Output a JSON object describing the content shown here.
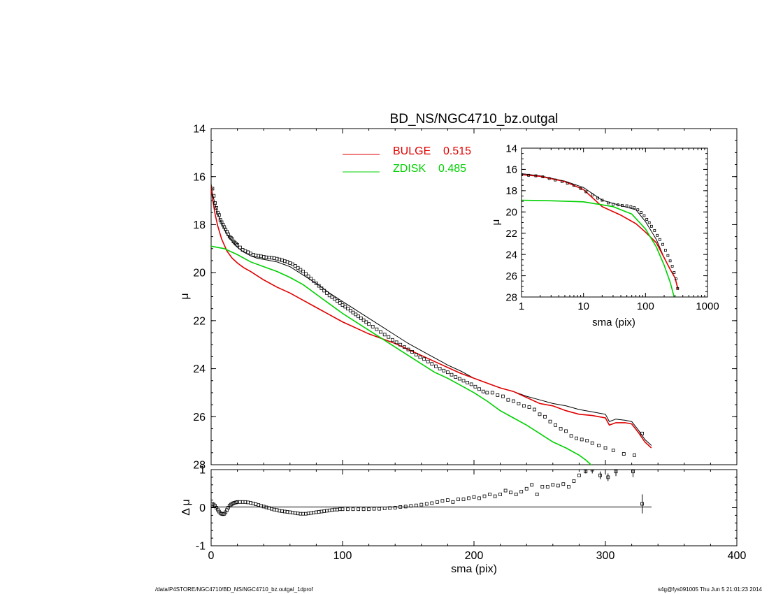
{
  "footer": {
    "left": "/data/P4STORE/NGC4710/BD_NS/NGC4710_bz.outgal_1dprof",
    "right": "s4g@fys091005  Thu Jun  5 21:01:23 2014"
  },
  "colors": {
    "data": "#000000",
    "model_total": "#000000",
    "bulge": "#e00000",
    "disk": "#00d000"
  },
  "chart_data": [
    {
      "id": "main",
      "type": "line",
      "title": "BD_NS/NGC4710_bz.outgal",
      "xlabel": "",
      "ylabel": "μ",
      "xlim": [
        0,
        400
      ],
      "ylim": [
        28,
        14
      ],
      "y_inverted": true,
      "xticks": [
        0,
        100,
        200,
        300,
        400
      ],
      "yticks": [
        14,
        16,
        18,
        20,
        22,
        24,
        26,
        28
      ],
      "legend": {
        "placement": "top-center",
        "entries": [
          {
            "label": "BULGE",
            "value": "0.515",
            "color": "#e00000"
          },
          {
            "label": "ZDISK",
            "value": "0.485",
            "color": "#00d000"
          }
        ]
      },
      "series": [
        {
          "kind": "points",
          "x": [
            1,
            2,
            3,
            4,
            5,
            6,
            7,
            8,
            9,
            10,
            11,
            12,
            13,
            14,
            15,
            16,
            17,
            18,
            19,
            20,
            22,
            24,
            26,
            28,
            30,
            32,
            34,
            36,
            38,
            40,
            42,
            44,
            46,
            48,
            50,
            52,
            54,
            56,
            58,
            60,
            62,
            64,
            66,
            68,
            70,
            72,
            74,
            76,
            78,
            80,
            82,
            84,
            86,
            88,
            90,
            92,
            94,
            96,
            98,
            100,
            102,
            104,
            106,
            108,
            110,
            112,
            114,
            116,
            118,
            120,
            123,
            126,
            129,
            132,
            135,
            138,
            141,
            144,
            147,
            150,
            153,
            156,
            159,
            162,
            165,
            168,
            171,
            174,
            177,
            180,
            183,
            186,
            189,
            192,
            195,
            198,
            201,
            204,
            207,
            210,
            214,
            218,
            222,
            226,
            230,
            234,
            238,
            242,
            246,
            250,
            254,
            258,
            262,
            266,
            270,
            274,
            278,
            282,
            286,
            290,
            295,
            300,
            306,
            314,
            322,
            328
          ],
          "y": [
            16.5,
            16.8,
            17.1,
            17.3,
            17.5,
            17.6,
            17.8,
            17.9,
            18.0,
            18.1,
            18.2,
            18.3,
            18.4,
            18.5,
            18.55,
            18.6,
            18.7,
            18.75,
            18.8,
            18.85,
            18.95,
            19.05,
            19.1,
            19.15,
            19.2,
            19.25,
            19.28,
            19.3,
            19.32,
            19.34,
            19.36,
            19.37,
            19.38,
            19.4,
            19.42,
            19.45,
            19.48,
            19.52,
            19.55,
            19.6,
            19.65,
            19.72,
            19.8,
            19.88,
            19.95,
            20.05,
            20.15,
            20.25,
            20.35,
            20.45,
            20.55,
            20.65,
            20.75,
            20.85,
            20.95,
            21.02,
            21.1,
            21.18,
            21.26,
            21.35,
            21.42,
            21.5,
            21.58,
            21.66,
            21.74,
            21.82,
            21.9,
            21.98,
            22.06,
            22.14,
            22.25,
            22.36,
            22.47,
            22.58,
            22.68,
            22.8,
            22.9,
            23.0,
            23.1,
            23.2,
            23.3,
            23.42,
            23.52,
            23.6,
            23.7,
            23.8,
            23.9,
            24.0,
            24.08,
            24.15,
            24.25,
            24.35,
            24.42,
            24.5,
            24.58,
            24.65,
            24.75,
            24.85,
            24.95,
            25.0,
            25.0,
            25.1,
            25.15,
            25.3,
            25.35,
            25.45,
            25.55,
            25.6,
            25.7,
            25.9,
            26.0,
            26.2,
            26.35,
            26.5,
            26.6,
            26.8,
            26.9,
            26.95,
            27.0,
            27.1,
            27.2,
            27.3,
            27.4,
            27.55,
            27.6,
            26.7
          ]
        },
        {
          "kind": "model_total",
          "x": [
            0,
            1,
            3,
            5,
            8,
            12,
            16,
            20,
            25,
            30,
            35,
            40,
            45,
            50,
            55,
            60,
            70,
            80,
            90,
            100,
            110,
            120,
            130,
            140,
            150,
            160,
            170,
            180,
            190,
            200,
            210,
            220,
            230,
            240,
            250,
            260,
            270,
            280,
            290,
            295,
            300,
            303,
            308,
            315,
            320,
            325,
            330,
            335
          ],
          "y": [
            16.3,
            16.7,
            17.15,
            17.55,
            17.95,
            18.4,
            18.7,
            18.95,
            19.15,
            19.3,
            19.4,
            19.45,
            19.5,
            19.55,
            19.65,
            19.75,
            20.1,
            20.45,
            20.85,
            21.2,
            21.55,
            21.9,
            22.25,
            22.6,
            22.95,
            23.25,
            23.55,
            23.85,
            24.1,
            24.4,
            24.6,
            24.8,
            24.95,
            25.15,
            25.3,
            25.45,
            25.55,
            25.7,
            25.8,
            25.85,
            25.9,
            26.2,
            26.1,
            26.15,
            26.2,
            26.55,
            26.95,
            27.2
          ]
        },
        {
          "kind": "bulge",
          "x": [
            0,
            1,
            3,
            5,
            8,
            12,
            16,
            20,
            25,
            30,
            40,
            50,
            60,
            70,
            80,
            90,
            100,
            110,
            120,
            130,
            140,
            150,
            160,
            170,
            180,
            190,
            200,
            210,
            220,
            230,
            240,
            250,
            260,
            270,
            280,
            290,
            295,
            300,
            303,
            308,
            315,
            320,
            325,
            330,
            335
          ],
          "y": [
            16.4,
            16.9,
            17.55,
            18.05,
            18.6,
            19.1,
            19.4,
            19.6,
            19.8,
            19.95,
            20.3,
            20.6,
            20.85,
            21.15,
            21.45,
            21.75,
            22.05,
            22.3,
            22.55,
            22.75,
            22.95,
            23.2,
            23.45,
            23.7,
            23.95,
            24.2,
            24.4,
            24.6,
            24.8,
            24.95,
            25.2,
            25.45,
            25.55,
            25.75,
            25.9,
            25.95,
            26.0,
            26.05,
            26.35,
            26.25,
            26.25,
            26.3,
            26.65,
            27.05,
            27.3
          ]
        },
        {
          "kind": "disk",
          "x": [
            0,
            10,
            20,
            30,
            40,
            50,
            60,
            70,
            80,
            90,
            100,
            110,
            120,
            130,
            140,
            150,
            160,
            170,
            180,
            190,
            200,
            210,
            220,
            230,
            240,
            250,
            260,
            270,
            280,
            285,
            290
          ],
          "y": [
            18.9,
            19.0,
            19.25,
            19.55,
            19.75,
            19.95,
            20.2,
            20.5,
            20.9,
            21.3,
            21.7,
            22.05,
            22.4,
            22.75,
            23.1,
            23.45,
            23.8,
            24.15,
            24.4,
            24.7,
            25.0,
            25.35,
            25.75,
            26.05,
            26.35,
            26.7,
            27.05,
            27.3,
            27.6,
            27.8,
            28.05
          ]
        }
      ]
    },
    {
      "id": "residual",
      "type": "scatter",
      "xlabel": "sma (pix)",
      "ylabel": "Δ μ",
      "xlim": [
        0,
        400
      ],
      "ylim": [
        -1,
        1
      ],
      "xticks": [
        0,
        100,
        200,
        300,
        400
      ],
      "yticks": [
        -1,
        0,
        1
      ],
      "series": [
        {
          "kind": "points",
          "x": [
            1,
            2,
            3,
            4,
            5,
            6,
            7,
            8,
            9,
            10,
            11,
            12,
            13,
            14,
            15,
            16,
            17,
            18,
            19,
            20,
            22,
            24,
            26,
            28,
            30,
            32,
            34,
            36,
            38,
            40,
            42,
            44,
            46,
            48,
            50,
            52,
            54,
            56,
            58,
            60,
            62,
            64,
            66,
            68,
            70,
            72,
            74,
            76,
            78,
            80,
            82,
            84,
            86,
            88,
            90,
            92,
            94,
            96,
            98,
            100,
            104,
            108,
            112,
            116,
            120,
            124,
            128,
            132,
            136,
            140,
            144,
            148,
            152,
            156,
            160,
            164,
            168,
            172,
            176,
            180,
            184,
            188,
            192,
            196,
            200,
            204,
            208,
            212,
            216,
            220,
            224,
            228,
            232,
            236,
            240,
            244,
            248,
            252,
            256,
            260,
            264,
            268,
            272,
            276,
            280,
            285,
            290,
            296,
            302,
            308,
            321,
            328
          ],
          "y": [
            0.1,
            0.08,
            0.05,
            0.0,
            -0.05,
            -0.1,
            -0.14,
            -0.16,
            -0.17,
            -0.16,
            -0.12,
            -0.06,
            0.0,
            0.05,
            0.08,
            0.1,
            0.12,
            0.13,
            0.14,
            0.15,
            0.15,
            0.15,
            0.15,
            0.14,
            0.13,
            0.11,
            0.09,
            0.07,
            0.05,
            0.03,
            0.01,
            -0.01,
            -0.03,
            -0.05,
            -0.06,
            -0.08,
            -0.09,
            -0.1,
            -0.11,
            -0.12,
            -0.13,
            -0.14,
            -0.15,
            -0.16,
            -0.16,
            -0.16,
            -0.15,
            -0.14,
            -0.13,
            -0.12,
            -0.11,
            -0.1,
            -0.09,
            -0.08,
            -0.07,
            -0.06,
            -0.05,
            -0.05,
            -0.04,
            -0.04,
            -0.04,
            -0.04,
            -0.04,
            -0.04,
            -0.04,
            -0.03,
            -0.03,
            -0.02,
            -0.01,
            0.0,
            0.02,
            0.03,
            0.05,
            0.06,
            0.08,
            0.1,
            0.12,
            0.15,
            0.18,
            0.2,
            0.15,
            0.22,
            0.22,
            0.25,
            0.28,
            0.25,
            0.3,
            0.35,
            0.3,
            0.35,
            0.45,
            0.4,
            0.35,
            0.42,
            0.5,
            0.6,
            0.35,
            0.55,
            0.55,
            0.6,
            0.58,
            0.62,
            0.55,
            0.7,
            0.85,
            0.95,
            1.0,
            0.85,
            0.8,
            0.95,
            0.95,
            0.1
          ],
          "err": [
            0,
            0,
            0,
            0,
            0,
            0,
            0,
            0,
            0,
            0,
            0,
            0,
            0,
            0,
            0,
            0,
            0,
            0,
            0,
            0,
            0,
            0,
            0,
            0,
            0,
            0,
            0,
            0,
            0,
            0,
            0,
            0,
            0,
            0,
            0,
            0,
            0,
            0,
            0,
            0,
            0,
            0,
            0,
            0,
            0,
            0,
            0,
            0,
            0,
            0,
            0,
            0,
            0,
            0,
            0,
            0,
            0,
            0,
            0,
            0,
            0,
            0,
            0,
            0,
            0,
            0,
            0,
            0,
            0,
            0,
            0,
            0,
            0,
            0,
            0,
            0,
            0,
            0,
            0,
            0,
            0,
            0,
            0,
            0,
            0,
            0,
            0,
            0,
            0,
            0,
            0,
            0,
            0,
            0,
            0,
            0,
            0,
            0,
            0,
            0,
            0,
            0,
            0,
            0,
            0,
            0.05,
            0.1,
            0.1,
            0.1,
            0.12,
            0.15,
            0.25
          ]
        }
      ]
    },
    {
      "id": "inset",
      "type": "line",
      "xlabel": "sma (pix)",
      "ylabel": "μ",
      "xscale": "log",
      "xlim": [
        1,
        1000
      ],
      "ylim": [
        28,
        14
      ],
      "y_inverted": true,
      "xticks": [
        1,
        10,
        100,
        1000
      ],
      "xtick_labels": [
        "1",
        "10",
        "100",
        "1000"
      ],
      "yticks": [
        14,
        16,
        18,
        20,
        22,
        24,
        26,
        28
      ],
      "series": [
        {
          "kind": "points",
          "x": [
            1,
            1.3,
            1.7,
            2.2,
            2.8,
            3.5,
            4.5,
            5.5,
            7,
            9,
            11,
            14,
            17,
            20,
            25,
            30,
            36,
            42,
            50,
            58,
            66,
            75,
            85,
            95,
            105,
            115,
            125,
            140,
            155,
            170,
            190,
            210,
            230,
            250,
            270,
            290,
            310,
            330
          ],
          "y": [
            16.5,
            16.55,
            16.6,
            16.7,
            16.85,
            17.0,
            17.15,
            17.3,
            17.5,
            17.8,
            18.1,
            18.4,
            18.7,
            18.9,
            19.15,
            19.28,
            19.34,
            19.38,
            19.42,
            19.5,
            19.6,
            19.8,
            20.05,
            20.35,
            20.7,
            21.0,
            21.35,
            21.75,
            22.2,
            22.6,
            23.05,
            23.6,
            24.1,
            24.6,
            25.1,
            25.7,
            26.3,
            27.2
          ]
        },
        {
          "kind": "model_total",
          "x": [
            1,
            2,
            5,
            10,
            20,
            40,
            70,
            100,
            150,
            200,
            250,
            300,
            335
          ],
          "y": [
            16.4,
            16.6,
            17.1,
            17.7,
            18.9,
            19.4,
            19.8,
            20.9,
            22.6,
            24.3,
            25.4,
            26.2,
            27.2
          ]
        },
        {
          "kind": "bulge",
          "x": [
            1,
            2,
            5,
            10,
            20,
            40,
            70,
            100,
            150,
            200,
            250,
            300,
            335
          ],
          "y": [
            16.5,
            16.65,
            17.15,
            17.9,
            19.5,
            20.3,
            21.1,
            21.9,
            22.9,
            24.3,
            25.4,
            26.2,
            27.3
          ]
        },
        {
          "kind": "disk",
          "x": [
            1,
            3,
            10,
            30,
            60,
            100,
            150,
            200,
            250,
            290
          ],
          "y": [
            18.9,
            18.95,
            19.05,
            19.5,
            20.2,
            21.6,
            23.3,
            25.0,
            26.6,
            28.0
          ]
        }
      ]
    }
  ]
}
